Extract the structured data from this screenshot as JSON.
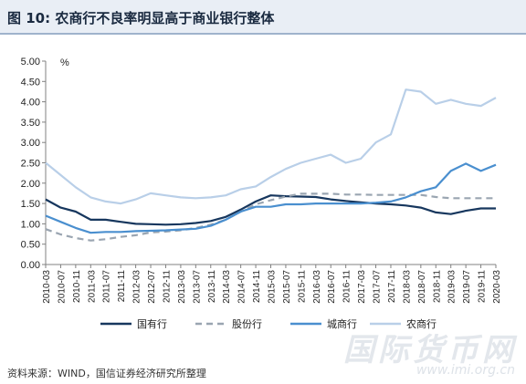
{
  "header": {
    "title": "图 10:  农商行不良率明显高于商业银行整体"
  },
  "source_text": "资料来源：WIND，国信证券经济研究所整理",
  "watermark": {
    "logo_text": "国际货币网",
    "url": "www.imi.org.cn"
  },
  "chart_data": {
    "type": "line",
    "unit_label": "%",
    "ylim": [
      0,
      5
    ],
    "yticks": [
      "0.00",
      "0.50",
      "1.00",
      "1.50",
      "2.00",
      "2.50",
      "3.00",
      "3.50",
      "4.00",
      "4.50",
      "5.00"
    ],
    "x": [
      "2010-03",
      "2010-07",
      "2010-11",
      "2011-03",
      "2011-07",
      "2011-11",
      "2012-03",
      "2012-07",
      "2012-11",
      "2013-03",
      "2013-07",
      "2013-11",
      "2014-03",
      "2014-07",
      "2014-11",
      "2015-03",
      "2015-07",
      "2015-11",
      "2016-03",
      "2016-07",
      "2016-11",
      "2017-03",
      "2017-07",
      "2017-11",
      "2018-03",
      "2018-07",
      "2018-11",
      "2019-03",
      "2019-07",
      "2019-11",
      "2020-03"
    ],
    "grid": false,
    "legend_position": "bottom",
    "series": [
      {
        "name": "国有行",
        "color": "#17375e",
        "dash": "solid",
        "values": [
          1.6,
          1.4,
          1.3,
          1.1,
          1.1,
          1.05,
          1.0,
          0.99,
          0.98,
          0.99,
          1.02,
          1.07,
          1.17,
          1.35,
          1.55,
          1.7,
          1.68,
          1.67,
          1.66,
          1.6,
          1.56,
          1.53,
          1.5,
          1.48,
          1.45,
          1.4,
          1.28,
          1.24,
          1.32,
          1.38,
          1.38
        ]
      },
      {
        "name": "股份行",
        "color": "#9aa5b1",
        "dash": "dash",
        "values": [
          0.87,
          0.74,
          0.65,
          0.59,
          0.62,
          0.68,
          0.72,
          0.79,
          0.81,
          0.84,
          0.9,
          0.98,
          1.1,
          1.3,
          1.48,
          1.58,
          1.67,
          1.74,
          1.74,
          1.74,
          1.72,
          1.72,
          1.71,
          1.71,
          1.71,
          1.71,
          1.66,
          1.63,
          1.63,
          1.63,
          1.63
        ]
      },
      {
        "name": "城商行",
        "color": "#4a8fcf",
        "dash": "solid",
        "values": [
          1.2,
          1.05,
          0.9,
          0.78,
          0.8,
          0.8,
          0.82,
          0.83,
          0.84,
          0.86,
          0.88,
          0.95,
          1.1,
          1.3,
          1.42,
          1.42,
          1.48,
          1.48,
          1.5,
          1.5,
          1.5,
          1.5,
          1.52,
          1.55,
          1.65,
          1.8,
          1.9,
          2.3,
          2.48,
          2.3,
          2.45
        ]
      },
      {
        "name": "农商行",
        "color": "#b9cfe8",
        "dash": "solid",
        "values": [
          2.5,
          2.2,
          1.9,
          1.65,
          1.55,
          1.5,
          1.6,
          1.75,
          1.7,
          1.65,
          1.63,
          1.65,
          1.7,
          1.85,
          1.92,
          2.15,
          2.35,
          2.5,
          2.6,
          2.7,
          2.5,
          2.6,
          3.0,
          3.2,
          4.3,
          4.25,
          3.95,
          4.05,
          3.95,
          3.9,
          4.1
        ]
      }
    ]
  }
}
